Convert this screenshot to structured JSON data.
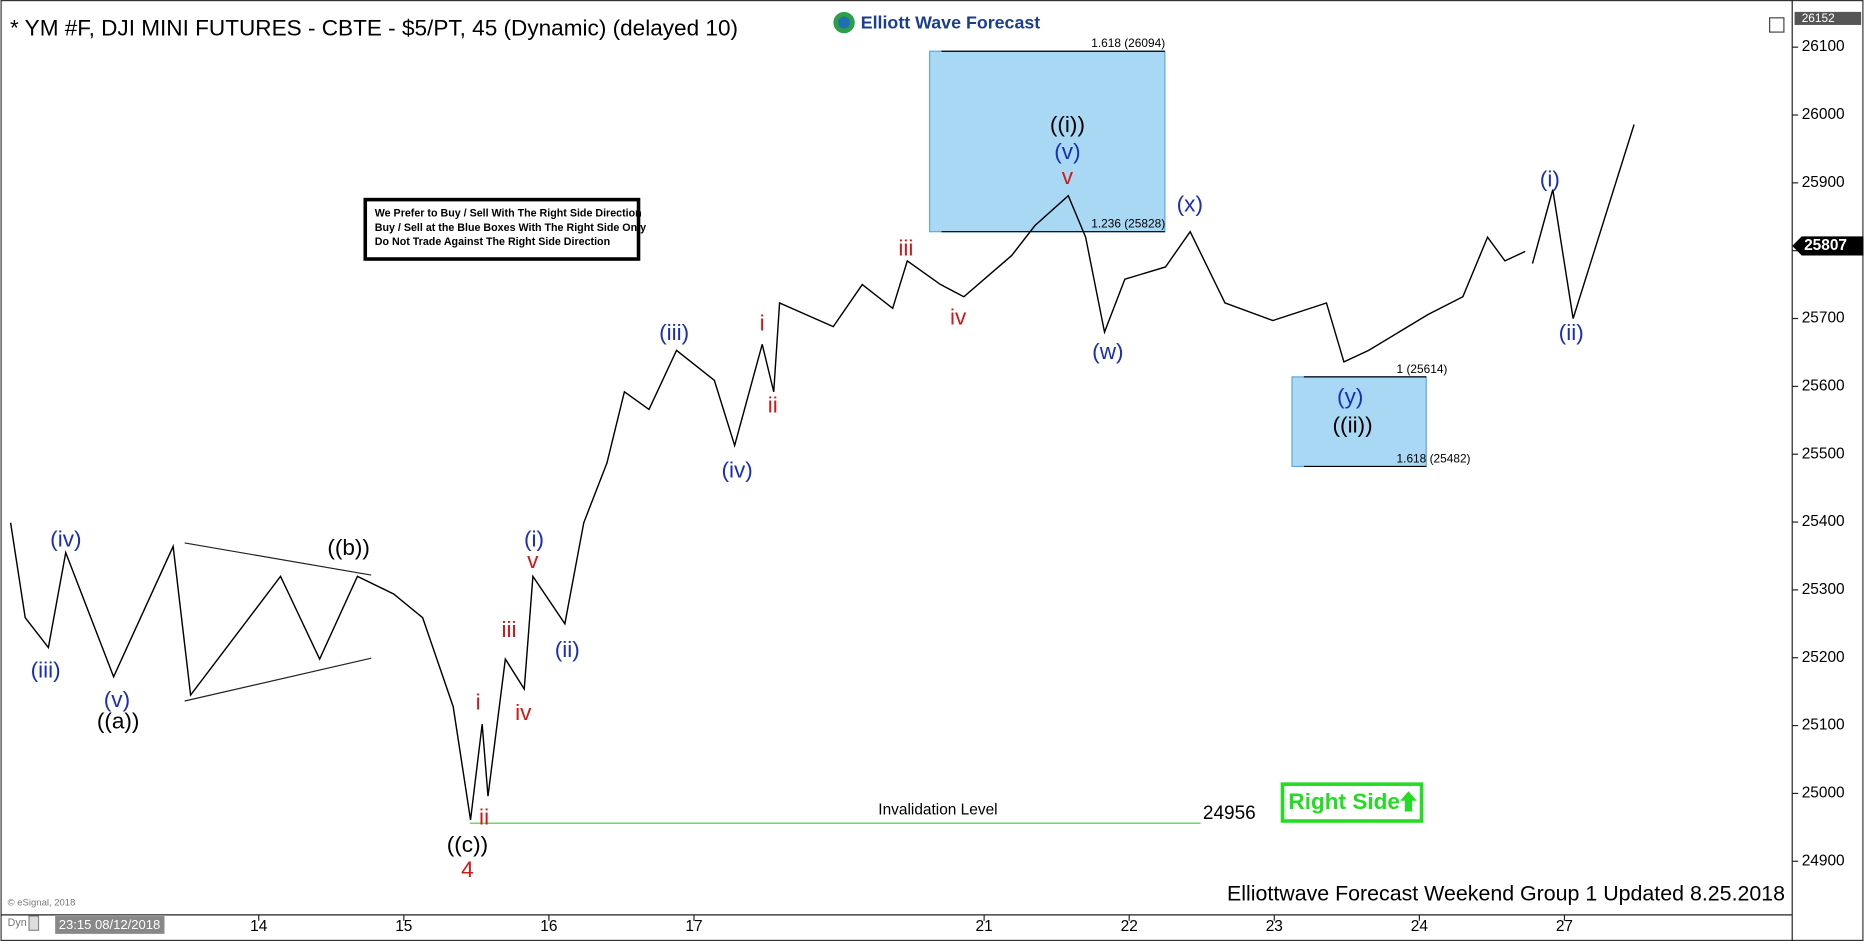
{
  "chart_data": {
    "type": "line",
    "title": "* YM #F, DJI MINI FUTURES - CBTE - $5/PT, 45 (Dynamic) (delayed 10)",
    "logo": "Elliott Wave Forecast",
    "footer": "Elliottwave Forecast Weekend Group 1 Updated 8.25.2018",
    "copyright": "© eSignal, 2018",
    "mode": "Dyn",
    "cursor_time": "23:15 08/12/2018",
    "notice": [
      "We Prefer to Buy / Sell With The Right Side Direction",
      "Buy / Sell at the Blue Boxes With The Right Side Only",
      "Do Not Trade Against The Right Side Direction"
    ],
    "badge": "Right Side",
    "xlim": [
      -0.78,
      11.57
    ],
    "xticks": [
      {
        "value": 1,
        "label": "14"
      },
      {
        "value": 2,
        "label": "15"
      },
      {
        "value": 3,
        "label": "16"
      },
      {
        "value": 4,
        "label": "17"
      },
      {
        "value": 6,
        "label": "21"
      },
      {
        "value": 7,
        "label": "22"
      },
      {
        "value": 8,
        "label": "23"
      },
      {
        "value": 9,
        "label": "24"
      },
      {
        "value": 10,
        "label": "27"
      }
    ],
    "ylim": [
      24821,
      26152
    ],
    "yticks": [
      24900,
      25000,
      25100,
      25200,
      25300,
      25400,
      25500,
      25600,
      25700,
      25800,
      25900,
      26000,
      26100
    ],
    "high_price": 26152,
    "last_price": 25807,
    "series": [
      {
        "color": "#000000",
        "x": [
          -0.71,
          -0.61,
          -0.45,
          -0.33,
          0.0,
          0.41,
          0.53,
          1.15,
          1.42,
          1.68,
          1.93,
          2.13,
          2.34,
          2.46,
          2.54,
          2.58,
          2.7,
          2.83,
          2.89,
          3.11,
          3.24,
          3.4,
          3.52,
          3.69,
          3.88,
          4.14,
          4.28,
          4.47,
          4.55,
          4.59,
          4.96,
          5.16,
          5.37,
          5.47,
          5.7,
          5.86,
          6.19,
          6.35,
          6.58,
          6.7,
          6.83,
          6.97,
          7.25,
          7.42,
          7.66,
          7.99,
          8.36,
          8.48,
          8.65,
          9.06,
          9.3,
          9.47,
          9.59,
          9.73
        ],
        "values": [
          25399,
          25259,
          25215,
          25355,
          25172,
          25364,
          25145,
          25320,
          25198,
          25320,
          25294,
          25259,
          25128,
          24961,
          25102,
          24996,
          25198,
          25154,
          25320,
          25250,
          25399,
          25487,
          25592,
          25566,
          25653,
          25609,
          25513,
          25662,
          25592,
          25723,
          25688,
          25750,
          25715,
          25785,
          25750,
          25732,
          25793,
          25837,
          25881,
          25820,
          25680,
          25758,
          25776,
          25828,
          25723,
          25697,
          25723,
          25636,
          25653,
          25706,
          25732,
          25820,
          25785,
          25799
        ]
      },
      {
        "color": "#000000",
        "x": [
          9.78,
          9.92,
          10.06,
          10.48
        ],
        "values": [
          25781,
          25890,
          25700,
          25986
        ]
      }
    ],
    "fib_boxes": [
      {
        "color": "#a9d8f5",
        "levels": [
          {
            "label": "1.618 (26094)",
            "value": 26094
          },
          {
            "label": "1.236 (25828)",
            "value": 25828
          }
        ]
      },
      {
        "color": "#a9d8f5",
        "levels": [
          {
            "label": "1 (25614)",
            "value": 25614
          },
          {
            "label": "1.618 (25482)",
            "value": 25482
          }
        ]
      }
    ],
    "invalidation": {
      "label": "Invalidation Level",
      "value": 24956,
      "color": "#66dd66"
    },
    "wave_labels": [
      {
        "text": "(iii)",
        "color": "#1a2fb5"
      },
      {
        "text": "(iv)",
        "color": "#1a2fb5"
      },
      {
        "text": "(v)",
        "color": "#1a2fb5"
      },
      {
        "text": "((a))",
        "color": "#000000"
      },
      {
        "text": "((b))",
        "color": "#000000"
      },
      {
        "text": "i",
        "color": "#d01818"
      },
      {
        "text": "ii",
        "color": "#d01818"
      },
      {
        "text": "((c))",
        "color": "#000000"
      },
      {
        "text": "4",
        "color": "#d01818"
      },
      {
        "text": "iii",
        "color": "#d01818"
      },
      {
        "text": "iv",
        "color": "#d01818"
      },
      {
        "text": "(i)",
        "color": "#1a2fb5"
      },
      {
        "text": "v",
        "color": "#d01818"
      },
      {
        "text": "(ii)",
        "color": "#1a2fb5"
      },
      {
        "text": "(iii)",
        "color": "#1a2fb5"
      },
      {
        "text": "(iv)",
        "color": "#1a2fb5"
      },
      {
        "text": "i",
        "color": "#d01818"
      },
      {
        "text": "ii",
        "color": "#d01818"
      },
      {
        "text": "iii",
        "color": "#d01818"
      },
      {
        "text": "iv",
        "color": "#d01818"
      },
      {
        "text": "((i))",
        "color": "#000000"
      },
      {
        "text": "(v)",
        "color": "#1a2fb5"
      },
      {
        "text": "v",
        "color": "#d01818"
      },
      {
        "text": "(x)",
        "color": "#1a2fb5"
      },
      {
        "text": "(w)",
        "color": "#1a2fb5"
      },
      {
        "text": "(y)",
        "color": "#1a2fb5"
      },
      {
        "text": "((ii))",
        "color": "#000000"
      },
      {
        "text": "(i)",
        "color": "#1a2fb5"
      },
      {
        "text": "(ii)",
        "color": "#1a2fb5"
      }
    ]
  }
}
